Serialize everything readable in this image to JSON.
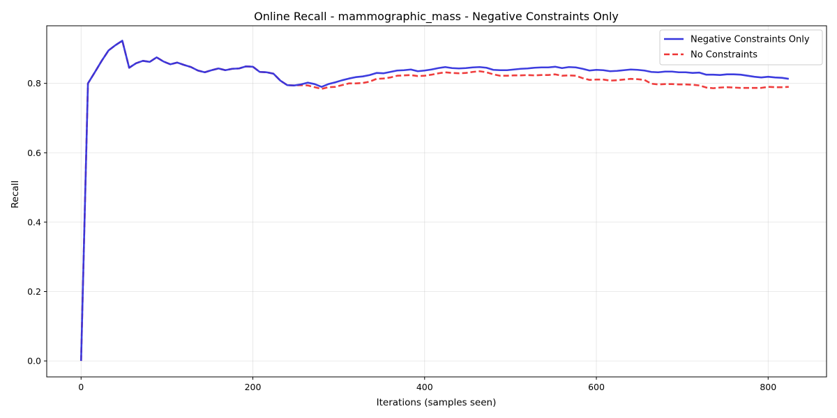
{
  "chart_data": {
    "type": "line",
    "title": "Online Recall - mammographic_mass - Negative Constraints Only",
    "xlabel": "Iterations (samples seen)",
    "ylabel": "Recall",
    "xlim": [
      -40,
      868
    ],
    "ylim": [
      -0.046,
      0.966
    ],
    "xticks": [
      0,
      200,
      400,
      600,
      800
    ],
    "yticks": [
      0.0,
      0.2,
      0.4,
      0.6,
      0.8
    ],
    "xtick_labels": [
      "0",
      "200",
      "400",
      "600",
      "800"
    ],
    "ytick_labels": [
      "0.0",
      "0.2",
      "0.4",
      "0.6",
      "0.8"
    ],
    "grid": true,
    "legend_position": "top-right",
    "series": [
      {
        "name": "Negative Constraints Only",
        "color": "#3333dd",
        "style": "solid",
        "points": [
          [
            0,
            0.0
          ],
          [
            8,
            0.8
          ],
          [
            16,
            0.832
          ],
          [
            24,
            0.865
          ],
          [
            32,
            0.895
          ],
          [
            40,
            0.91
          ],
          [
            48,
            0.923
          ],
          [
            56,
            0.845
          ],
          [
            64,
            0.858
          ],
          [
            72,
            0.865
          ],
          [
            80,
            0.862
          ],
          [
            88,
            0.875
          ],
          [
            96,
            0.863
          ],
          [
            104,
            0.855
          ],
          [
            112,
            0.86
          ],
          [
            120,
            0.853
          ],
          [
            128,
            0.847
          ],
          [
            136,
            0.837
          ],
          [
            144,
            0.832
          ],
          [
            152,
            0.838
          ],
          [
            160,
            0.843
          ],
          [
            168,
            0.838
          ],
          [
            176,
            0.842
          ],
          [
            184,
            0.843
          ],
          [
            192,
            0.849
          ],
          [
            200,
            0.848
          ],
          [
            208,
            0.833
          ],
          [
            216,
            0.832
          ],
          [
            224,
            0.828
          ],
          [
            232,
            0.808
          ],
          [
            240,
            0.795
          ],
          [
            248,
            0.794
          ],
          [
            256,
            0.797
          ],
          [
            264,
            0.802
          ],
          [
            272,
            0.798
          ],
          [
            280,
            0.79
          ],
          [
            288,
            0.798
          ],
          [
            296,
            0.803
          ],
          [
            304,
            0.809
          ],
          [
            312,
            0.814
          ],
          [
            320,
            0.818
          ],
          [
            328,
            0.82
          ],
          [
            336,
            0.824
          ],
          [
            344,
            0.83
          ],
          [
            352,
            0.829
          ],
          [
            360,
            0.833
          ],
          [
            368,
            0.837
          ],
          [
            376,
            0.838
          ],
          [
            384,
            0.84
          ],
          [
            392,
            0.835
          ],
          [
            400,
            0.837
          ],
          [
            408,
            0.84
          ],
          [
            416,
            0.844
          ],
          [
            424,
            0.847
          ],
          [
            432,
            0.844
          ],
          [
            440,
            0.843
          ],
          [
            448,
            0.844
          ],
          [
            456,
            0.846
          ],
          [
            464,
            0.847
          ],
          [
            472,
            0.845
          ],
          [
            480,
            0.839
          ],
          [
            488,
            0.838
          ],
          [
            496,
            0.838
          ],
          [
            504,
            0.84
          ],
          [
            512,
            0.842
          ],
          [
            520,
            0.843
          ],
          [
            528,
            0.845
          ],
          [
            536,
            0.846
          ],
          [
            544,
            0.846
          ],
          [
            552,
            0.848
          ],
          [
            560,
            0.844
          ],
          [
            568,
            0.847
          ],
          [
            576,
            0.846
          ],
          [
            584,
            0.842
          ],
          [
            592,
            0.837
          ],
          [
            600,
            0.839
          ],
          [
            608,
            0.838
          ],
          [
            616,
            0.835
          ],
          [
            624,
            0.836
          ],
          [
            632,
            0.838
          ],
          [
            640,
            0.84
          ],
          [
            648,
            0.839
          ],
          [
            656,
            0.837
          ],
          [
            664,
            0.833
          ],
          [
            672,
            0.832
          ],
          [
            680,
            0.834
          ],
          [
            688,
            0.834
          ],
          [
            696,
            0.832
          ],
          [
            704,
            0.832
          ],
          [
            712,
            0.83
          ],
          [
            720,
            0.831
          ],
          [
            728,
            0.825
          ],
          [
            736,
            0.825
          ],
          [
            744,
            0.824
          ],
          [
            752,
            0.826
          ],
          [
            760,
            0.826
          ],
          [
            768,
            0.825
          ],
          [
            776,
            0.822
          ],
          [
            784,
            0.819
          ],
          [
            792,
            0.817
          ],
          [
            800,
            0.819
          ],
          [
            808,
            0.817
          ],
          [
            816,
            0.816
          ],
          [
            824,
            0.813
          ]
        ]
      },
      {
        "name": "No Constraints",
        "color": "#ee3333",
        "style": "dashed",
        "points": [
          [
            0,
            0.0
          ],
          [
            8,
            0.8
          ],
          [
            16,
            0.832
          ],
          [
            24,
            0.865
          ],
          [
            32,
            0.895
          ],
          [
            40,
            0.91
          ],
          [
            48,
            0.923
          ],
          [
            56,
            0.845
          ],
          [
            64,
            0.858
          ],
          [
            72,
            0.865
          ],
          [
            80,
            0.862
          ],
          [
            88,
            0.875
          ],
          [
            96,
            0.863
          ],
          [
            104,
            0.855
          ],
          [
            112,
            0.86
          ],
          [
            120,
            0.853
          ],
          [
            128,
            0.847
          ],
          [
            136,
            0.837
          ],
          [
            144,
            0.832
          ],
          [
            152,
            0.838
          ],
          [
            160,
            0.843
          ],
          [
            168,
            0.838
          ],
          [
            176,
            0.842
          ],
          [
            184,
            0.843
          ],
          [
            192,
            0.849
          ],
          [
            200,
            0.848
          ],
          [
            208,
            0.833
          ],
          [
            216,
            0.832
          ],
          [
            224,
            0.828
          ],
          [
            232,
            0.808
          ],
          [
            240,
            0.795
          ],
          [
            248,
            0.794
          ],
          [
            256,
            0.795
          ],
          [
            264,
            0.794
          ],
          [
            272,
            0.789
          ],
          [
            280,
            0.784
          ],
          [
            288,
            0.789
          ],
          [
            296,
            0.79
          ],
          [
            304,
            0.795
          ],
          [
            312,
            0.8
          ],
          [
            320,
            0.8
          ],
          [
            328,
            0.801
          ],
          [
            336,
            0.805
          ],
          [
            344,
            0.813
          ],
          [
            352,
            0.814
          ],
          [
            360,
            0.817
          ],
          [
            368,
            0.822
          ],
          [
            376,
            0.823
          ],
          [
            384,
            0.824
          ],
          [
            392,
            0.821
          ],
          [
            400,
            0.822
          ],
          [
            408,
            0.825
          ],
          [
            416,
            0.829
          ],
          [
            424,
            0.832
          ],
          [
            432,
            0.83
          ],
          [
            440,
            0.829
          ],
          [
            448,
            0.83
          ],
          [
            456,
            0.833
          ],
          [
            464,
            0.835
          ],
          [
            472,
            0.832
          ],
          [
            480,
            0.826
          ],
          [
            488,
            0.822
          ],
          [
            496,
            0.822
          ],
          [
            504,
            0.823
          ],
          [
            512,
            0.823
          ],
          [
            520,
            0.824
          ],
          [
            528,
            0.823
          ],
          [
            536,
            0.824
          ],
          [
            544,
            0.824
          ],
          [
            552,
            0.826
          ],
          [
            560,
            0.822
          ],
          [
            568,
            0.823
          ],
          [
            576,
            0.822
          ],
          [
            584,
            0.815
          ],
          [
            592,
            0.81
          ],
          [
            600,
            0.811
          ],
          [
            608,
            0.811
          ],
          [
            616,
            0.808
          ],
          [
            624,
            0.809
          ],
          [
            632,
            0.811
          ],
          [
            640,
            0.813
          ],
          [
            648,
            0.812
          ],
          [
            656,
            0.81
          ],
          [
            664,
            0.799
          ],
          [
            672,
            0.797
          ],
          [
            680,
            0.798
          ],
          [
            688,
            0.798
          ],
          [
            696,
            0.797
          ],
          [
            704,
            0.797
          ],
          [
            712,
            0.796
          ],
          [
            720,
            0.794
          ],
          [
            728,
            0.788
          ],
          [
            736,
            0.786
          ],
          [
            744,
            0.788
          ],
          [
            752,
            0.789
          ],
          [
            760,
            0.788
          ],
          [
            768,
            0.787
          ],
          [
            776,
            0.787
          ],
          [
            784,
            0.787
          ],
          [
            792,
            0.787
          ],
          [
            800,
            0.79
          ],
          [
            808,
            0.789
          ],
          [
            816,
            0.789
          ],
          [
            824,
            0.79
          ]
        ]
      }
    ]
  }
}
